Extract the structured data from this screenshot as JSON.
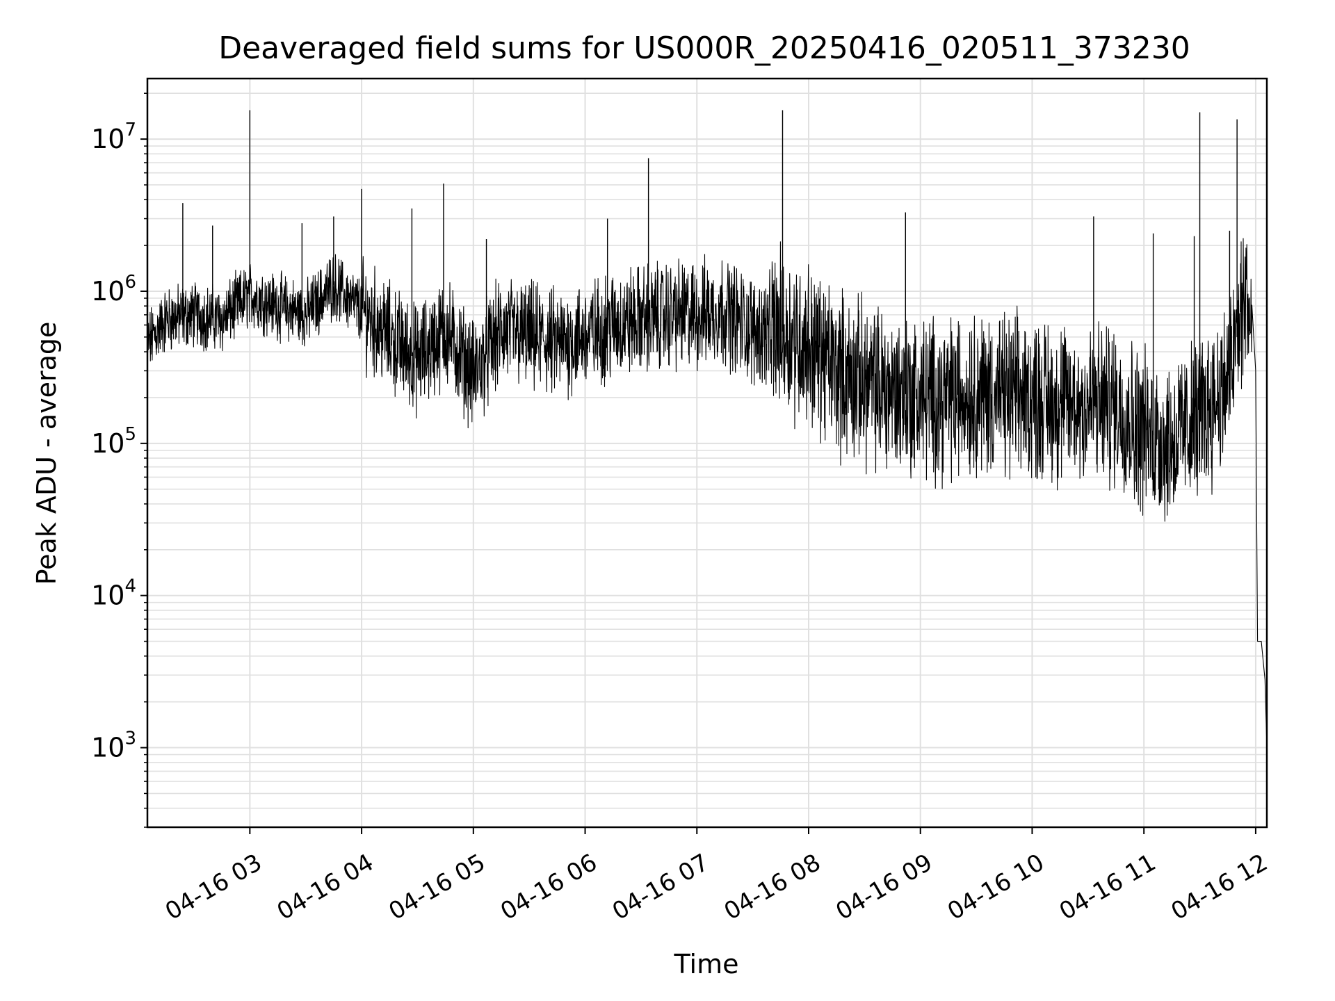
{
  "chart_data": {
    "type": "line",
    "title": "Deaveraged field sums for US000R_20250416_020511_373230",
    "xlabel": "Time",
    "ylabel": "Peak ADU - average",
    "yscale": "log",
    "grid": true,
    "legend": "none",
    "line_color": "#000000",
    "grid_color": "#e0e0e0",
    "xlim": [
      "2025-04-16 02:05",
      "2025-04-16 12:06"
    ],
    "ylim": [
      300,
      25000000
    ],
    "xticks": [
      {
        "value": "2025-04-16 03:00",
        "label": "04-16 03"
      },
      {
        "value": "2025-04-16 04:00",
        "label": "04-16 04"
      },
      {
        "value": "2025-04-16 05:00",
        "label": "04-16 05"
      },
      {
        "value": "2025-04-16 06:00",
        "label": "04-16 06"
      },
      {
        "value": "2025-04-16 07:00",
        "label": "04-16 07"
      },
      {
        "value": "2025-04-16 08:00",
        "label": "04-16 08"
      },
      {
        "value": "2025-04-16 09:00",
        "label": "04-16 09"
      },
      {
        "value": "2025-04-16 10:00",
        "label": "04-16 10"
      },
      {
        "value": "2025-04-16 11:00",
        "label": "04-16 11"
      },
      {
        "value": "2025-04-16 12:00",
        "label": "04-16 12"
      }
    ],
    "yticks": [
      {
        "value": 1000,
        "base": "10",
        "exp": "3"
      },
      {
        "value": 10000,
        "base": "10",
        "exp": "4"
      },
      {
        "value": 100000,
        "base": "10",
        "exp": "5"
      },
      {
        "value": 1000000,
        "base": "10",
        "exp": "6"
      },
      {
        "value": 10000000,
        "base": "10",
        "exp": "7"
      }
    ],
    "series": [
      {
        "type": "line",
        "x": [
          "2025-04-16 02:05",
          "2025-04-16 02:15",
          "2025-04-16 02:30",
          "2025-04-16 02:45",
          "2025-04-16 03:00",
          "2025-04-16 03:15",
          "2025-04-16 03:30",
          "2025-04-16 03:45",
          "2025-04-16 04:00",
          "2025-04-16 04:15",
          "2025-04-16 04:30",
          "2025-04-16 04:45",
          "2025-04-16 05:00",
          "2025-04-16 05:15",
          "2025-04-16 05:30",
          "2025-04-16 05:45",
          "2025-04-16 06:00",
          "2025-04-16 06:15",
          "2025-04-16 06:30",
          "2025-04-16 06:45",
          "2025-04-16 07:00",
          "2025-04-16 07:15",
          "2025-04-16 07:30",
          "2025-04-16 07:45",
          "2025-04-16 08:00",
          "2025-04-16 08:15",
          "2025-04-16 08:30",
          "2025-04-16 08:45",
          "2025-04-16 09:00",
          "2025-04-16 09:15",
          "2025-04-16 09:30",
          "2025-04-16 09:45",
          "2025-04-16 10:00",
          "2025-04-16 10:15",
          "2025-04-16 10:30",
          "2025-04-16 10:45",
          "2025-04-16 11:00",
          "2025-04-16 11:15",
          "2025-04-16 11:30",
          "2025-04-16 11:45",
          "2025-04-16 11:55",
          "2025-04-16 12:00",
          "2025-04-16 12:01",
          "2025-04-16 12:03",
          "2025-04-16 12:05",
          "2025-04-16 12:06"
        ],
        "y": [
          450000,
          650000,
          700000,
          650000,
          950000,
          800000,
          700000,
          1100000,
          750000,
          500000,
          350000,
          550000,
          280000,
          550000,
          500000,
          450000,
          500000,
          600000,
          650000,
          700000,
          700000,
          750000,
          550000,
          550000,
          450000,
          300000,
          250000,
          220000,
          200000,
          200000,
          220000,
          200000,
          200000,
          180000,
          180000,
          180000,
          120000,
          100000,
          150000,
          250000,
          1000000,
          300000,
          5000,
          5000,
          2800,
          1000
        ]
      },
      {
        "type": "spikes",
        "x": [
          "2025-04-16 02:24",
          "2025-04-16 02:40",
          "2025-04-16 03:00",
          "2025-04-16 03:28",
          "2025-04-16 03:45",
          "2025-04-16 04:00",
          "2025-04-16 04:27",
          "2025-04-16 04:44",
          "2025-04-16 05:07",
          "2025-04-16 06:12",
          "2025-04-16 06:34",
          "2025-04-16 07:46",
          "2025-04-16 08:52",
          "2025-04-16 10:33",
          "2025-04-16 11:05",
          "2025-04-16 11:27",
          "2025-04-16 11:30",
          "2025-04-16 11:46",
          "2025-04-16 11:50"
        ],
        "y": [
          3800000,
          2700000,
          15500000,
          2800000,
          3100000,
          4700000,
          3500000,
          5100000,
          2200000,
          3000000,
          7500000,
          15500000,
          3300000,
          3100000,
          2400000,
          2300000,
          15000000,
          2500000,
          13500000
        ]
      }
    ]
  }
}
